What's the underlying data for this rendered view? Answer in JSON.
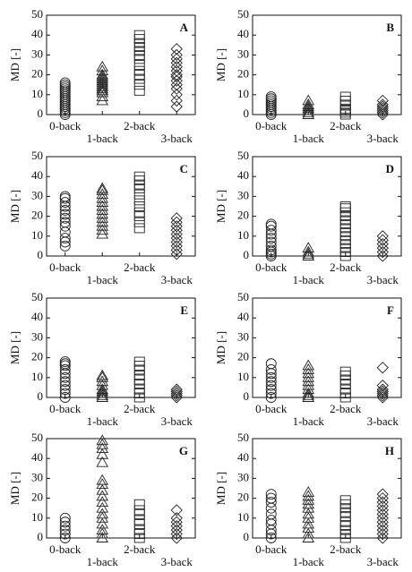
{
  "chart_data": [
    {
      "type": "strip",
      "label": "A",
      "ylabel": "MD [-]",
      "categories": [
        "0-back",
        "1-back",
        "2-back",
        "3-back"
      ],
      "markers": [
        "circle",
        "triangle",
        "square",
        "diamond"
      ],
      "color": "#222",
      "ylim": [
        0,
        50
      ],
      "yticks": [
        0,
        10,
        20,
        30,
        40,
        50
      ],
      "values": [
        [
          0,
          1,
          2,
          3,
          4,
          5,
          6,
          7,
          8,
          9,
          10,
          11,
          12,
          13,
          14,
          15,
          16
        ],
        [
          7,
          9,
          11,
          12,
          13,
          14,
          15,
          16,
          17,
          18,
          19,
          20,
          22,
          24
        ],
        [
          12,
          15,
          18,
          20,
          22,
          25,
          28,
          30,
          32,
          34,
          36,
          38,
          40
        ],
        [
          4,
          7,
          10,
          13,
          15,
          17,
          19,
          20,
          22,
          24,
          26,
          28,
          30,
          33
        ]
      ]
    },
    {
      "type": "strip",
      "label": "B",
      "ylabel": "MD [-]",
      "categories": [
        "0-back",
        "1-back",
        "2-back",
        "3-back"
      ],
      "markers": [
        "circle",
        "triangle",
        "square",
        "diamond"
      ],
      "color": "#222",
      "ylim": [
        0,
        50
      ],
      "yticks": [
        0,
        10,
        20,
        30,
        40,
        50
      ],
      "values": [
        [
          0,
          1,
          2,
          3,
          4,
          5,
          6,
          7,
          8,
          9
        ],
        [
          0,
          1,
          2,
          3,
          4,
          5,
          7
        ],
        [
          0,
          1,
          2,
          3,
          5,
          7,
          9
        ],
        [
          0,
          1,
          2,
          3,
          4,
          5,
          7
        ]
      ]
    },
    {
      "type": "strip",
      "label": "C",
      "ylabel": "MD [-]",
      "categories": [
        "0-back",
        "1-back",
        "2-back",
        "3-back"
      ],
      "markers": [
        "circle",
        "triangle",
        "square",
        "diamond"
      ],
      "color": "#222",
      "ylim": [
        0,
        50
      ],
      "yticks": [
        0,
        10,
        20,
        30,
        40,
        50
      ],
      "values": [
        [
          5,
          7,
          9,
          12,
          15,
          17,
          19,
          21,
          23,
          25,
          27,
          29,
          30
        ],
        [
          11,
          13,
          15,
          17,
          19,
          21,
          23,
          25,
          27,
          29,
          31,
          33,
          34
        ],
        [
          14,
          17,
          20,
          22,
          25,
          28,
          31,
          34,
          36,
          38,
          40
        ],
        [
          1,
          3,
          5,
          7,
          9,
          11,
          13,
          15,
          17,
          19
        ]
      ]
    },
    {
      "type": "strip",
      "label": "D",
      "ylabel": "MD [-]",
      "categories": [
        "0-back",
        "1-back",
        "2-back",
        "3-back"
      ],
      "markers": [
        "circle",
        "triangle",
        "square",
        "diamond"
      ],
      "color": "#222",
      "ylim": [
        0,
        50
      ],
      "yticks": [
        0,
        10,
        20,
        30,
        40,
        50
      ],
      "values": [
        [
          0,
          1,
          2,
          3,
          5,
          7,
          9,
          11,
          13,
          15,
          16
        ],
        [
          0,
          1,
          2,
          4
        ],
        [
          0,
          2,
          4,
          6,
          8,
          10,
          12,
          14,
          16,
          18,
          20,
          22,
          24,
          25
        ],
        [
          0,
          2,
          4,
          6,
          8,
          10
        ]
      ]
    },
    {
      "type": "strip",
      "label": "E",
      "ylabel": "MD [-]",
      "categories": [
        "0-back",
        "1-back",
        "2-back",
        "3-back"
      ],
      "markers": [
        "circle",
        "triangle",
        "square",
        "diamond"
      ],
      "color": "#222",
      "ylim": [
        0,
        50
      ],
      "yticks": [
        0,
        10,
        20,
        30,
        40,
        50
      ],
      "values": [
        [
          0,
          2,
          4,
          6,
          8,
          10,
          12,
          14,
          16,
          17,
          18
        ],
        [
          0,
          1,
          2,
          3,
          4,
          6,
          8,
          10,
          11
        ],
        [
          0,
          2,
          4,
          7,
          9,
          11,
          14,
          16,
          18
        ],
        [
          0,
          1,
          2,
          3,
          4
        ]
      ]
    },
    {
      "type": "strip",
      "label": "F",
      "ylabel": "MD [-]",
      "categories": [
        "0-back",
        "1-back",
        "2-back",
        "3-back"
      ],
      "markers": [
        "circle",
        "triangle",
        "square",
        "diamond"
      ],
      "color": "#222",
      "ylim": [
        0,
        50
      ],
      "yticks": [
        0,
        10,
        20,
        30,
        40,
        50
      ],
      "values": [
        [
          0,
          2,
          4,
          6,
          8,
          10,
          12,
          14,
          17
        ],
        [
          0,
          1,
          2,
          4,
          6,
          8,
          10,
          12,
          14,
          16
        ],
        [
          0,
          2,
          4,
          7,
          9,
          11,
          13
        ],
        [
          0,
          1,
          2,
          3,
          4,
          6,
          15
        ]
      ]
    },
    {
      "type": "strip",
      "label": "G",
      "ylabel": "MD [-]",
      "categories": [
        "0-back",
        "1-back",
        "2-back",
        "3-back"
      ],
      "markers": [
        "circle",
        "triangle",
        "square",
        "diamond"
      ],
      "color": "#222",
      "ylim": [
        0,
        50
      ],
      "yticks": [
        0,
        10,
        20,
        30,
        40,
        50
      ],
      "values": [
        [
          0,
          2,
          4,
          6,
          8,
          10
        ],
        [
          0,
          2,
          4,
          7,
          10,
          12,
          15,
          18,
          21,
          24,
          27,
          29,
          38,
          42,
          45,
          47,
          49
        ],
        [
          0,
          2,
          4,
          7,
          9,
          12,
          14,
          17
        ],
        [
          0,
          2,
          4,
          6,
          8,
          10,
          14
        ]
      ]
    },
    {
      "type": "strip",
      "label": "H",
      "ylabel": "MD [-]",
      "categories": [
        "0-back",
        "1-back",
        "2-back",
        "3-back"
      ],
      "markers": [
        "circle",
        "triangle",
        "square",
        "diamond"
      ],
      "color": "#222",
      "ylim": [
        0,
        50
      ],
      "yticks": [
        0,
        10,
        20,
        30,
        40,
        50
      ],
      "values": [
        [
          0,
          2,
          4,
          7,
          9,
          12,
          15,
          18,
          20,
          22
        ],
        [
          0,
          2,
          5,
          7,
          10,
          12,
          15,
          17,
          19,
          21,
          23
        ],
        [
          0,
          2,
          4,
          6,
          8,
          11,
          13,
          15,
          17,
          19
        ],
        [
          0,
          2,
          4,
          6,
          8,
          10,
          12,
          14,
          16,
          18,
          20,
          22
        ]
      ]
    }
  ]
}
